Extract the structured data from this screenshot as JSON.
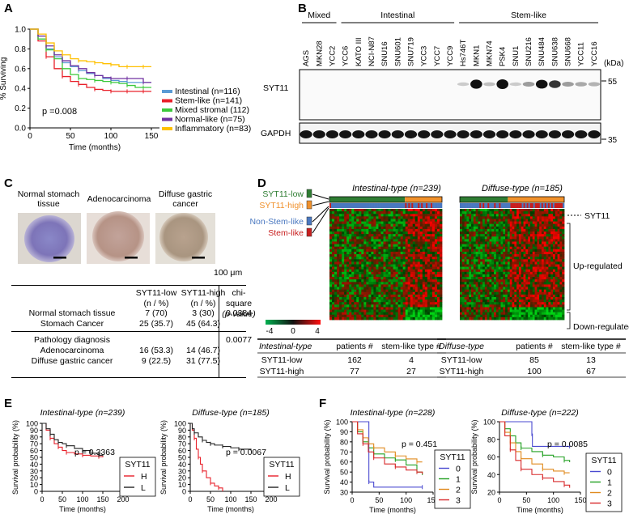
{
  "panel_labels": {
    "a": "A",
    "b": "B",
    "c": "C",
    "d": "D",
    "e": "E",
    "f": "F"
  },
  "chart_data": [
    {
      "panel": "A",
      "type": "line",
      "ylabel": "% Surviving",
      "xlabel": "Time (months)",
      "x_ticks": [
        "0",
        "50",
        "100",
        "150"
      ],
      "y_ticks": [
        "0.0",
        "0.2",
        "0.4",
        "0.6",
        "0.8",
        "1.0"
      ],
      "xlim": [
        0,
        160
      ],
      "ylim": [
        0,
        1
      ],
      "pvalue_text": "p =0.008",
      "series": [
        {
          "name": "Intestinal (n=116)",
          "color": "#5b9bd5",
          "x": [
            0,
            10,
            20,
            30,
            40,
            50,
            60,
            70,
            80,
            90,
            100,
            110,
            120,
            130,
            140,
            150
          ],
          "y": [
            1,
            0.9,
            0.8,
            0.72,
            0.66,
            0.62,
            0.58,
            0.55,
            0.53,
            0.5,
            0.48,
            0.47,
            0.46,
            0.46,
            0.46,
            0.46
          ]
        },
        {
          "name": "Stem-like (n=141)",
          "color": "#e8202a",
          "x": [
            0,
            10,
            20,
            30,
            40,
            50,
            60,
            70,
            80,
            90,
            100,
            110,
            120,
            130,
            140,
            150
          ],
          "y": [
            1,
            0.88,
            0.72,
            0.6,
            0.52,
            0.47,
            0.44,
            0.41,
            0.39,
            0.38,
            0.37,
            0.37,
            0.37,
            0.37,
            0.37,
            0.37
          ]
        },
        {
          "name": "Mixed stromal (112)",
          "color": "#3cc93c",
          "x": [
            0,
            10,
            20,
            30,
            40,
            50,
            60,
            70,
            80,
            90,
            100,
            110,
            120,
            130,
            140,
            150
          ],
          "y": [
            1,
            0.9,
            0.79,
            0.7,
            0.6,
            0.54,
            0.5,
            0.49,
            0.48,
            0.47,
            0.46,
            0.45,
            0.43,
            0.41,
            0.41,
            0.41
          ]
        },
        {
          "name": "Normal-like (n=75)",
          "color": "#7030a0",
          "x": [
            0,
            10,
            20,
            30,
            40,
            50,
            60,
            70,
            80,
            90,
            100,
            110,
            120,
            130,
            140,
            150
          ],
          "y": [
            1,
            0.93,
            0.83,
            0.74,
            0.68,
            0.63,
            0.6,
            0.56,
            0.53,
            0.51,
            0.5,
            0.5,
            0.5,
            0.5,
            0.46,
            0.46
          ]
        },
        {
          "name": "Inflammatory (n=83)",
          "color": "#ffc000",
          "x": [
            0,
            10,
            20,
            30,
            40,
            50,
            60,
            70,
            80,
            90,
            100,
            110,
            120,
            130,
            140,
            150
          ],
          "y": [
            1,
            0.95,
            0.86,
            0.78,
            0.74,
            0.7,
            0.68,
            0.67,
            0.66,
            0.65,
            0.64,
            0.62,
            0.62,
            0.62,
            0.62,
            0.62
          ]
        }
      ]
    },
    {
      "panel": "E-left",
      "type": "line",
      "title": "Intestinal-type (n=239)",
      "ylabel": "Survival probability (%)",
      "xlabel": "Time (months)",
      "x_ticks": [
        "0",
        "50",
        "100",
        "150",
        "200"
      ],
      "y_ticks": [
        "0",
        "10",
        "20",
        "30",
        "40",
        "50",
        "60",
        "70",
        "80",
        "90",
        "100"
      ],
      "xlim": [
        0,
        200
      ],
      "ylim": [
        0,
        100
      ],
      "pvalue_text": "p = 0.3363",
      "legend_title": "SYT11",
      "legend": [
        "H",
        "L"
      ],
      "series": [
        {
          "name": "H",
          "color": "#e8202a",
          "x": [
            0,
            10,
            20,
            30,
            40,
            50,
            60,
            80,
            100,
            120,
            140,
            150
          ],
          "y": [
            100,
            90,
            78,
            70,
            65,
            60,
            57,
            55,
            53,
            52,
            51,
            50
          ]
        },
        {
          "name": "L",
          "color": "#222222",
          "x": [
            0,
            10,
            20,
            30,
            40,
            50,
            60,
            80,
            100,
            120,
            140,
            150
          ],
          "y": [
            100,
            92,
            84,
            76,
            72,
            70,
            67,
            63,
            60,
            56,
            53,
            52
          ]
        }
      ]
    },
    {
      "panel": "E-right",
      "type": "line",
      "title": "Diffuse-type (n=185)",
      "ylabel": "Survival probability (%)",
      "xlabel": "Time (months)",
      "x_ticks": [
        "0",
        "50",
        "100",
        "150",
        "200"
      ],
      "y_ticks": [
        "0",
        "10",
        "20",
        "30",
        "40",
        "50",
        "60",
        "70",
        "80",
        "90",
        "100"
      ],
      "xlim": [
        0,
        200
      ],
      "ylim": [
        0,
        100
      ],
      "pvalue_text": "p = 0.0067",
      "legend_title": "SYT11",
      "legend": [
        "H",
        "L"
      ],
      "series": [
        {
          "name": "H",
          "color": "#e8202a",
          "x": [
            0,
            5,
            10,
            15,
            20,
            25,
            30,
            40,
            50,
            60,
            70,
            80
          ],
          "y": [
            100,
            90,
            78,
            62,
            50,
            40,
            30,
            20,
            12,
            8,
            5,
            0
          ]
        },
        {
          "name": "L",
          "color": "#222222",
          "x": [
            0,
            5,
            10,
            20,
            30,
            40,
            50,
            60,
            80,
            100,
            120,
            150
          ],
          "y": [
            100,
            92,
            86,
            80,
            75,
            72,
            70,
            68,
            66,
            64,
            62,
            60
          ]
        }
      ]
    },
    {
      "panel": "F-left",
      "type": "line",
      "title": "Intestinal-type (n=228)",
      "ylabel": "Survival probability (%)",
      "xlabel": "Time (months)",
      "x_ticks": [
        "0",
        "50",
        "100",
        "150"
      ],
      "y_ticks": [
        "30",
        "40",
        "50",
        "60",
        "70",
        "80",
        "90",
        "100"
      ],
      "xlim": [
        0,
        150
      ],
      "ylim": [
        30,
        100
      ],
      "pvalue_text": "p = 0.451",
      "legend_title": "SYT11",
      "legend": [
        "0",
        "1",
        "2",
        "3"
      ],
      "series": [
        {
          "name": "0",
          "color": "#4a4ad0",
          "x": [
            0,
            30,
            31,
            40,
            130
          ],
          "y": [
            100,
            100,
            40,
            35,
            35
          ]
        },
        {
          "name": "1",
          "color": "#22a022",
          "x": [
            0,
            10,
            20,
            30,
            40,
            60,
            80,
            100,
            120,
            130
          ],
          "y": [
            100,
            90,
            80,
            74,
            68,
            64,
            62,
            57,
            50,
            47
          ]
        },
        {
          "name": "2",
          "color": "#e08a1e",
          "x": [
            0,
            10,
            20,
            30,
            40,
            60,
            80,
            100,
            120,
            130
          ],
          "y": [
            100,
            92,
            84,
            78,
            74,
            70,
            66,
            63,
            60,
            60
          ]
        },
        {
          "name": "3",
          "color": "#d8282a",
          "x": [
            0,
            10,
            20,
            30,
            40,
            60,
            80,
            100,
            120,
            130
          ],
          "y": [
            100,
            88,
            78,
            70,
            64,
            58,
            55,
            52,
            50,
            48
          ]
        }
      ]
    },
    {
      "panel": "F-right",
      "type": "line",
      "title": "Diffuse-type (n=222)",
      "ylabel": "Survival probability (%)",
      "xlabel": "Time (months)",
      "x_ticks": [
        "0",
        "50",
        "100",
        "150"
      ],
      "y_ticks": [
        "20",
        "40",
        "60",
        "80",
        "100"
      ],
      "xlim": [
        0,
        150
      ],
      "ylim": [
        20,
        100
      ],
      "pvalue_text": "p = 0.0085",
      "legend_title": "SYT11",
      "legend": [
        "0",
        "1",
        "2",
        "3"
      ],
      "series": [
        {
          "name": "0",
          "color": "#4a4ad0",
          "x": [
            0,
            30,
            60,
            61,
            130
          ],
          "y": [
            100,
            100,
            86,
            72,
            72
          ]
        },
        {
          "name": "1",
          "color": "#22a022",
          "x": [
            0,
            10,
            20,
            30,
            40,
            60,
            80,
            100,
            120,
            130
          ],
          "y": [
            100,
            92,
            84,
            76,
            70,
            66,
            62,
            60,
            56,
            54
          ]
        },
        {
          "name": "2",
          "color": "#e08a1e",
          "x": [
            0,
            10,
            20,
            30,
            40,
            60,
            80,
            100,
            120,
            130
          ],
          "y": [
            100,
            88,
            76,
            66,
            58,
            52,
            46,
            44,
            42,
            42
          ]
        },
        {
          "name": "3",
          "color": "#d8282a",
          "x": [
            0,
            10,
            20,
            30,
            40,
            60,
            80,
            100,
            120,
            130
          ],
          "y": [
            100,
            84,
            68,
            56,
            46,
            40,
            36,
            32,
            28,
            25
          ]
        }
      ]
    }
  ],
  "blot": {
    "groups": [
      "Mixed",
      "Intestinal",
      "Stem-like"
    ],
    "lanes": [
      "AGS",
      "MKN28",
      "YCC2",
      "YCC6",
      "KATO III",
      "NCI-N87",
      "SNU16",
      "SNU601",
      "SNU719",
      "YCC3",
      "YCC7",
      "YCC9",
      "Hs746T",
      "MKN1",
      "MKN74",
      "PSK4",
      "SNU1",
      "SNU216",
      "SNU484",
      "SNU638",
      "SNU668",
      "YCC11",
      "YCC16"
    ],
    "rows": [
      "SYT11",
      "GAPDH"
    ],
    "kda_label": "(kDa)",
    "markers": [
      "55",
      "35"
    ],
    "syt11_intensity": [
      0,
      0,
      0,
      0,
      0,
      0,
      0,
      0,
      0,
      0,
      0,
      0,
      0.05,
      0.9,
      0.1,
      1.0,
      0.05,
      0.25,
      0.85,
      0.7,
      0.25,
      0.2,
      0.15
    ]
  },
  "panel_c": {
    "images": [
      "Normal stomach tissue",
      "Adenocarcinoma",
      "Diffuse gastric cancer"
    ],
    "scale": "100 μm",
    "header": [
      "SYT11-low",
      "SYT11-high",
      "chi-square"
    ],
    "subheader": [
      "(n / %)",
      "(n / %)",
      "(p-value)"
    ],
    "rows": [
      {
        "label": "Normal stomach tissue",
        "low": "7 (70)",
        "high": "3 (30)",
        "p": "0.0384"
      },
      {
        "label": "Stomach Cancer",
        "low": "25 (35.7)",
        "high": "45 (64.3)",
        "p": ""
      },
      {
        "label": "Pathology diagnosis",
        "low": "",
        "high": "",
        "p": "0.0077"
      },
      {
        "label": "Adenocarcinoma",
        "low": "16 (53.3)",
        "high": "14 (46.7)",
        "p": ""
      },
      {
        "label": "Diffuse gastric cancer",
        "low": "9 (22.5)",
        "high": "31 (77.5)",
        "p": ""
      }
    ]
  },
  "panel_d": {
    "left_title": "Intestinal-type (n=239)",
    "right_title": "Diffuse-type (n=185)",
    "legend": [
      "SYT11-low",
      "SYT11-high",
      "Non-Stem-like",
      "Stem-like"
    ],
    "colors": {
      "low": "#2e7d32",
      "high": "#f0902a",
      "nonstem": "#4a78c0",
      "stem": "#c81e1e"
    },
    "right_labels": [
      "SYT11",
      "Up-regulated",
      "Down-regulated"
    ],
    "scale": [
      "-4",
      "0",
      "4"
    ],
    "table_left": {
      "head": [
        "Intestinal-type",
        "patients #",
        "stem-like type #"
      ],
      "rows": [
        [
          "SYT11-low",
          "162",
          "4"
        ],
        [
          "SYT11-high",
          "77",
          "27"
        ]
      ]
    },
    "table_right": {
      "head": [
        "Diffuse-type",
        "patients #",
        "stem-like type #"
      ],
      "rows": [
        [
          "SYT11-low",
          "85",
          "13"
        ],
        [
          "SYT11-high",
          "100",
          "67"
        ]
      ]
    }
  }
}
